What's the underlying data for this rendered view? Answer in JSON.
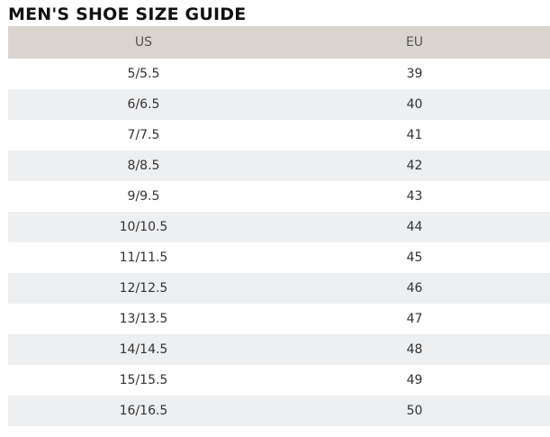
{
  "title": "MEN'S SHOE SIZE GUIDE",
  "columns": [
    "US",
    "EU"
  ],
  "rows": [
    [
      "5/5.5",
      "39"
    ],
    [
      "6/6.5",
      "40"
    ],
    [
      "7/7.5",
      "41"
    ],
    [
      "8/8.5",
      "42"
    ],
    [
      "9/9.5",
      "43"
    ],
    [
      "10/10.5",
      "44"
    ],
    [
      "11/11.5",
      "45"
    ],
    [
      "12/12.5",
      "46"
    ],
    [
      "13/13.5",
      "47"
    ],
    [
      "14/14.5",
      "48"
    ],
    [
      "15/15.5",
      "49"
    ],
    [
      "16/16.5",
      "50"
    ]
  ]
}
